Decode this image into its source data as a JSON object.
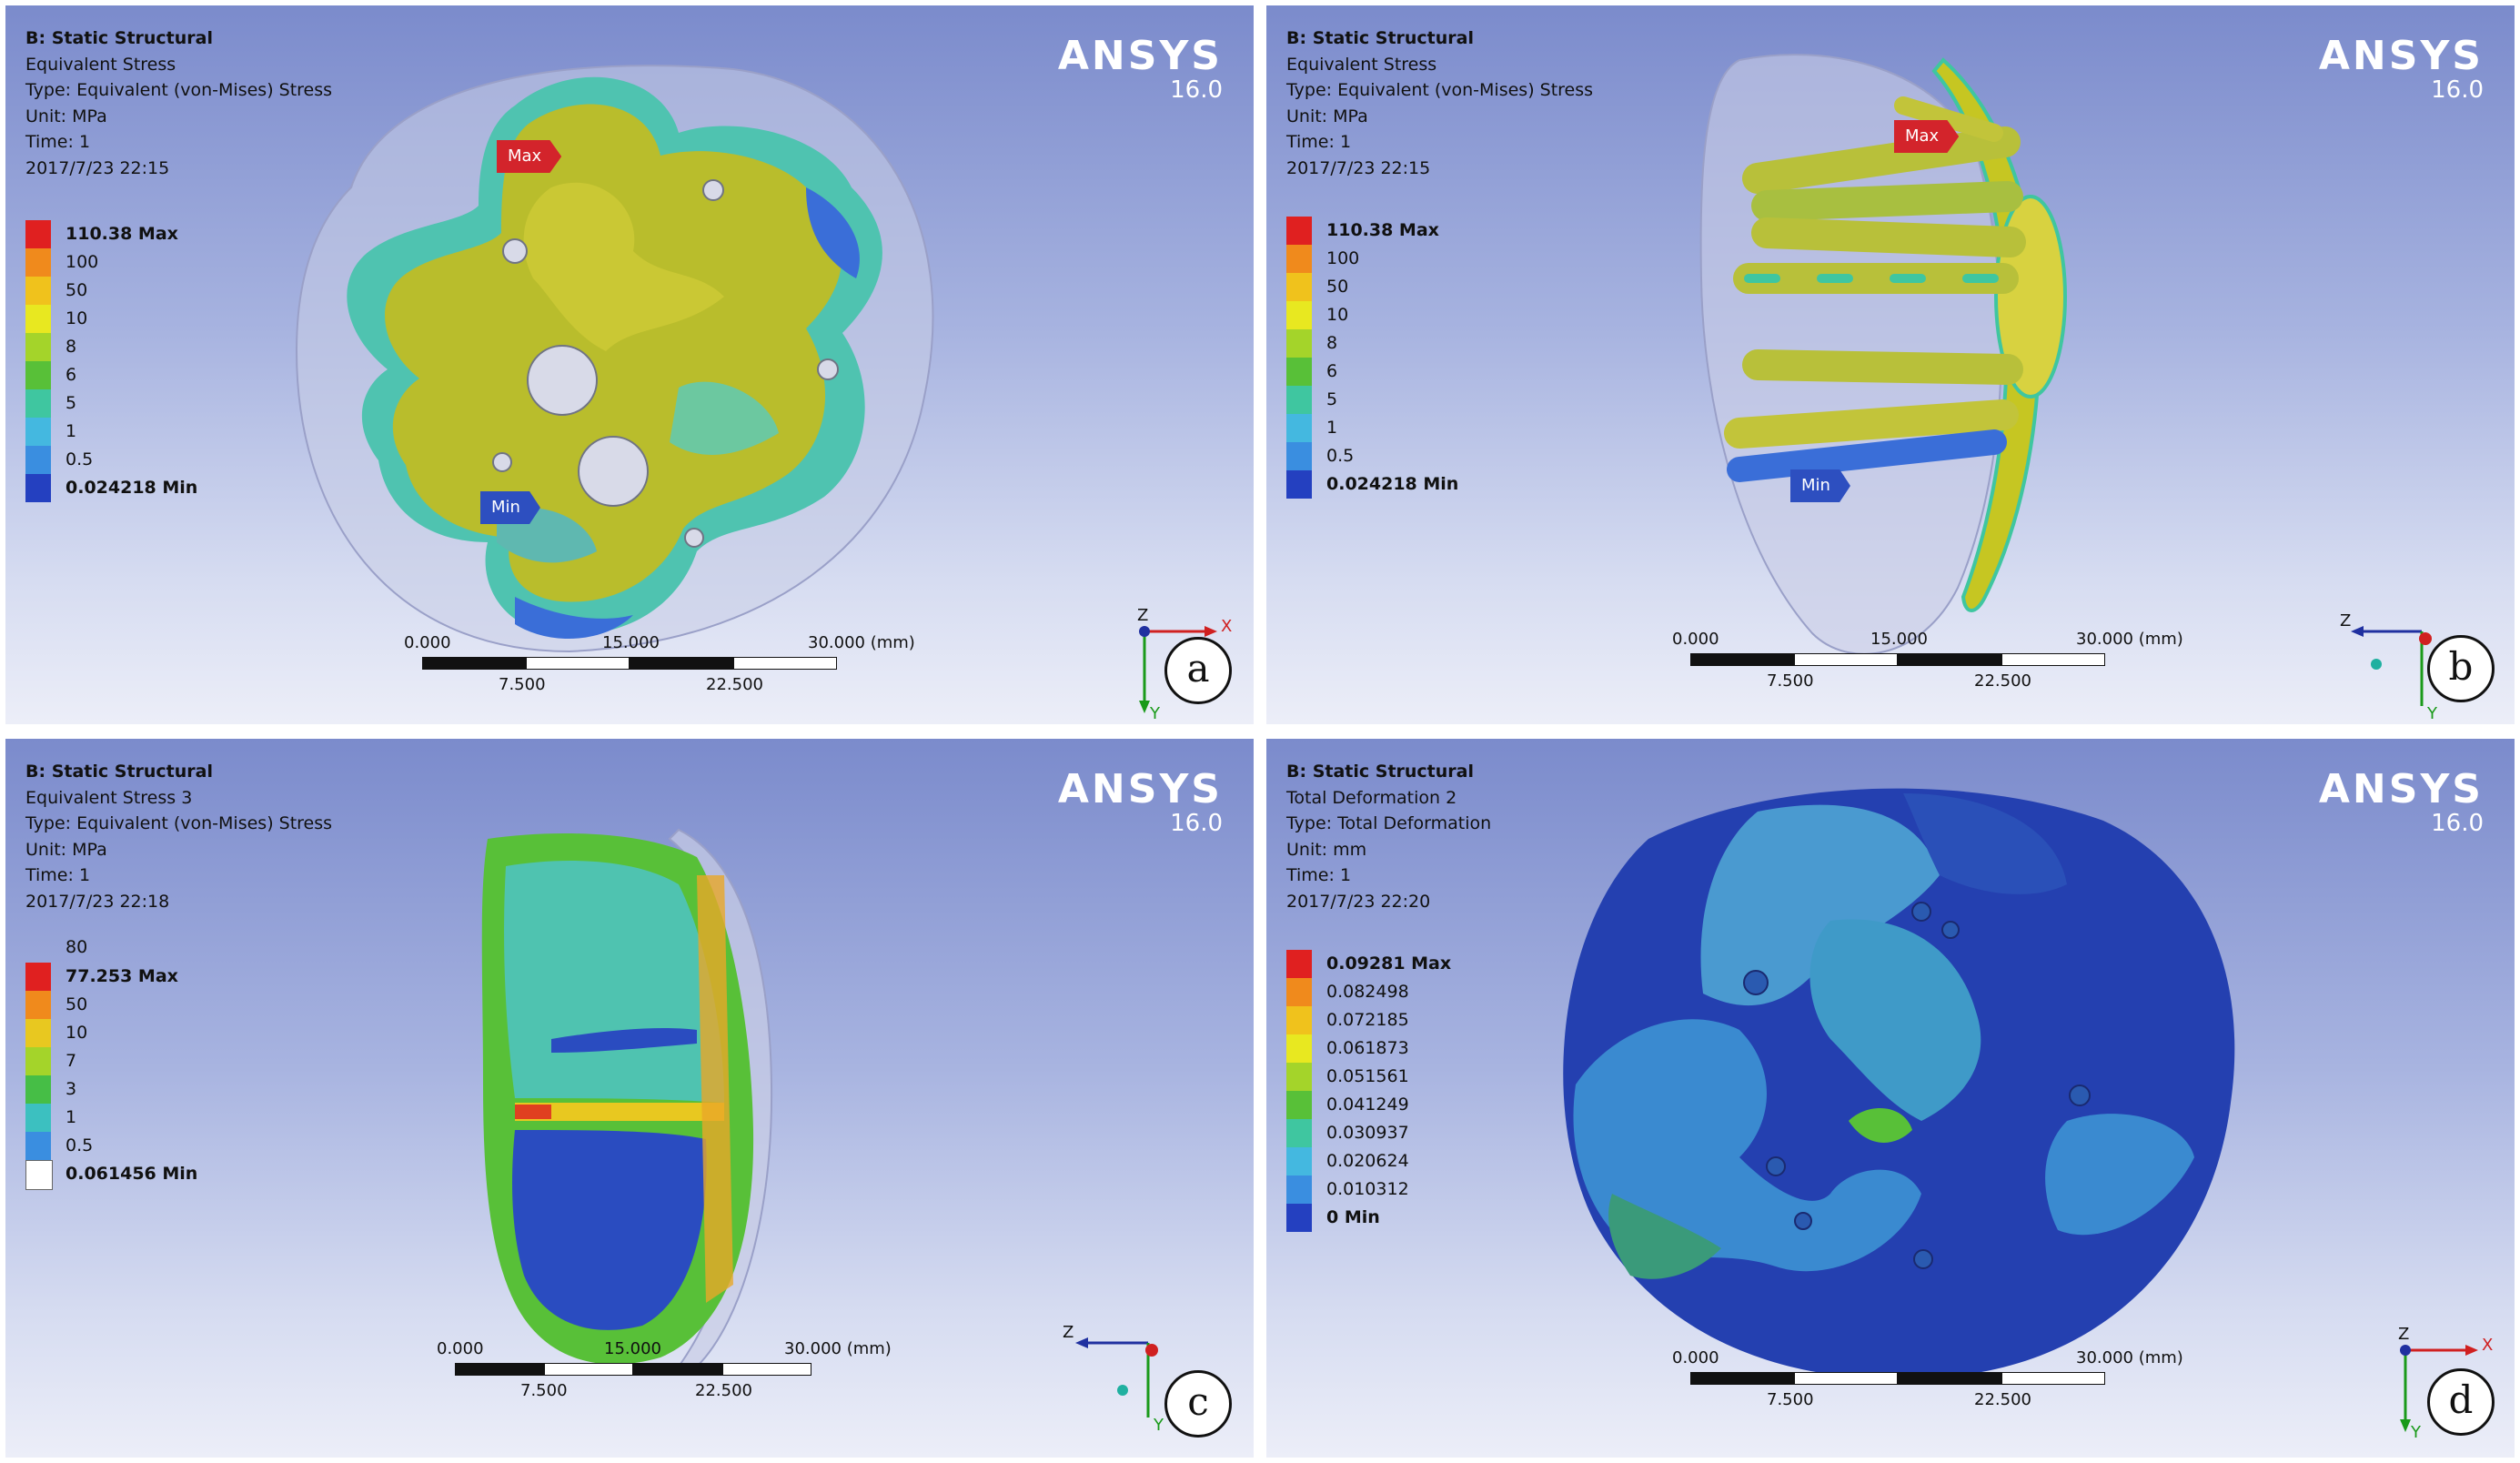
{
  "software": {
    "name": "ANSYS",
    "version": "16.0"
  },
  "panels": [
    {
      "id": "a",
      "info": {
        "title": "B: Static Structural",
        "line1": "Equivalent Stress",
        "line2": "Type: Equivalent (von-Mises) Stress",
        "line3": "Unit: MPa",
        "line4": "Time: 1",
        "line5": "2017/7/23 22:15"
      },
      "legend": [
        {
          "label": "110.38 Max",
          "color": "#e02020",
          "bold": true
        },
        {
          "label": "100",
          "color": "#f08a1c"
        },
        {
          "label": "50",
          "color": "#f0c21c"
        },
        {
          "label": "10",
          "color": "#e8e820"
        },
        {
          "label": "8",
          "color": "#a4d42a"
        },
        {
          "label": "6",
          "color": "#58c038"
        },
        {
          "label": "5",
          "color": "#3fc6a0"
        },
        {
          "label": "1",
          "color": "#44b8e0"
        },
        {
          "label": "0.5",
          "color": "#3a8ee0"
        },
        {
          "label": "0.024218 Min",
          "color": "#2440c0",
          "bold": true
        }
      ],
      "markers": {
        "max": "Max",
        "min": "Min"
      },
      "scale": {
        "ticks_top": [
          "0.000",
          "15.000",
          "30.000 (mm)"
        ],
        "ticks_bottom": [
          "7.500",
          "22.500"
        ]
      },
      "axis": [
        "Z",
        "X",
        "Y"
      ]
    },
    {
      "id": "b",
      "info": {
        "title": "B: Static Structural",
        "line1": "Equivalent Stress",
        "line2": "Type: Equivalent (von-Mises) Stress",
        "line3": "Unit: MPa",
        "line4": "Time: 1",
        "line5": "2017/7/23 22:15"
      },
      "legend": [
        {
          "label": "110.38 Max",
          "color": "#e02020",
          "bold": true
        },
        {
          "label": "100",
          "color": "#f08a1c"
        },
        {
          "label": "50",
          "color": "#f0c21c"
        },
        {
          "label": "10",
          "color": "#e8e820"
        },
        {
          "label": "8",
          "color": "#a4d42a"
        },
        {
          "label": "6",
          "color": "#58c038"
        },
        {
          "label": "5",
          "color": "#3fc6a0"
        },
        {
          "label": "1",
          "color": "#44b8e0"
        },
        {
          "label": "0.5",
          "color": "#3a8ee0"
        },
        {
          "label": "0.024218 Min",
          "color": "#2440c0",
          "bold": true
        }
      ],
      "markers": {
        "max": "Max",
        "min": "Min"
      },
      "scale": {
        "ticks_top": [
          "0.000",
          "15.000",
          "30.000 (mm)"
        ],
        "ticks_bottom": [
          "7.500",
          "22.500"
        ]
      },
      "axis": [
        "Z",
        "Y"
      ]
    },
    {
      "id": "c",
      "info": {
        "title": "B: Static Structural",
        "line1": "Equivalent Stress 3",
        "line2": "Type: Equivalent (von-Mises) Stress",
        "line3": "Unit: MPa",
        "line4": "Time: 1",
        "line5": "2017/7/23 22:18"
      },
      "legend_extra": "80",
      "legend": [
        {
          "label": "77.253 Max",
          "color": "#e02020",
          "bold": true
        },
        {
          "label": "50",
          "color": "#f08a1c"
        },
        {
          "label": "10",
          "color": "#e8c820"
        },
        {
          "label": "7",
          "color": "#a4d42a"
        },
        {
          "label": "3",
          "color": "#46be46"
        },
        {
          "label": "1",
          "color": "#3cc0c0"
        },
        {
          "label": "0.5",
          "color": "#3a8ee0"
        },
        {
          "label": "0.061456 Min",
          "color": "#ffffff",
          "bold": true
        }
      ],
      "scale": {
        "ticks_top": [
          "0.000",
          "15.000",
          "30.000 (mm)"
        ],
        "ticks_bottom": [
          "7.500",
          "22.500"
        ]
      },
      "axis": [
        "Z",
        "Y"
      ]
    },
    {
      "id": "d",
      "info": {
        "title": "B: Static Structural",
        "line1": "Total Deformation 2",
        "line2": "Type: Total Deformation",
        "line3": "Unit: mm",
        "line4": "Time: 1",
        "line5": "2017/7/23 22:20"
      },
      "legend": [
        {
          "label": "0.09281 Max",
          "color": "#e02020",
          "bold": true
        },
        {
          "label": "0.082498",
          "color": "#f08a1c"
        },
        {
          "label": "0.072185",
          "color": "#f0c21c"
        },
        {
          "label": "0.061873",
          "color": "#e8e820"
        },
        {
          "label": "0.051561",
          "color": "#a4d42a"
        },
        {
          "label": "0.041249",
          "color": "#58c038"
        },
        {
          "label": "0.030937",
          "color": "#3fc6a0"
        },
        {
          "label": "0.020624",
          "color": "#44b8e0"
        },
        {
          "label": "0.010312",
          "color": "#3a8ee0"
        },
        {
          "label": "0 Min",
          "color": "#2440c0",
          "bold": true
        }
      ],
      "scale": {
        "ticks_top": [
          "0.000",
          "30.000 (mm)"
        ],
        "ticks_bottom": [
          "7.500",
          "22.500"
        ]
      },
      "axis": [
        "Z",
        "X",
        "Y"
      ]
    }
  ]
}
